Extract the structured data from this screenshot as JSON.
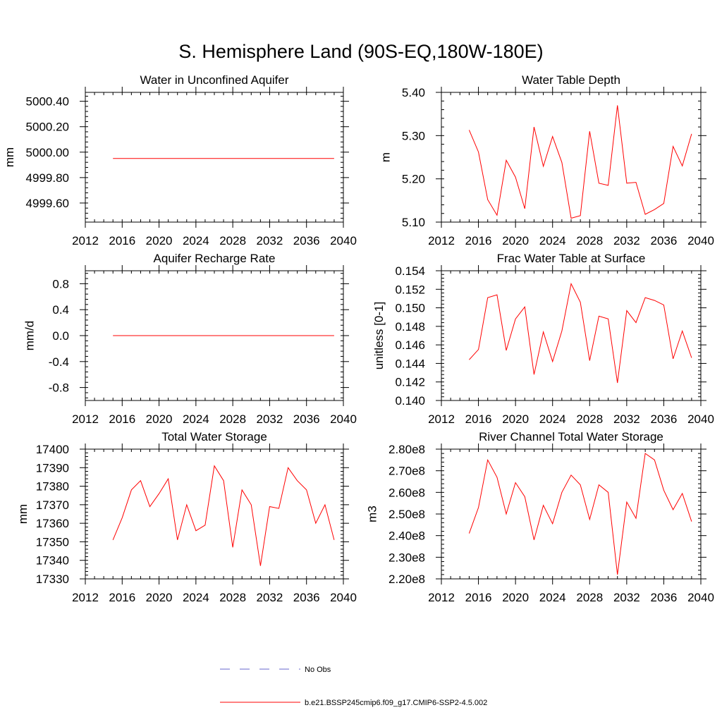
{
  "figure": {
    "title": "S. Hemisphere Land (90S-EQ,180W-180E)"
  },
  "legend": {
    "entries": [
      {
        "label": "No Obs",
        "color": "#6666cc",
        "style": "dashed"
      },
      {
        "label": "b.e21.BSSP245cmip6.f09_g17.CMIP6-SSP2-4.5.002",
        "color": "#ff0000",
        "style": "solid"
      }
    ]
  },
  "chart_data": [
    {
      "type": "line",
      "title": "Water in Unconfined Aquifer",
      "ylabel": "mm",
      "xlim": [
        2012,
        2040
      ],
      "ylim": [
        4999.45,
        5000.47
      ],
      "yticks": [
        4999.6,
        4999.8,
        5000.0,
        5000.2,
        5000.4
      ],
      "ytick_labels": [
        "4999.60",
        "4999.80",
        "5000.00",
        "5000.20",
        "5000.40"
      ],
      "xticks": [
        2012,
        2016,
        2020,
        2024,
        2028,
        2032,
        2036,
        2040
      ],
      "xtick_labels": [
        "2012",
        "2016",
        "2020",
        "2024",
        "2028",
        "2032",
        "2036",
        "2040"
      ],
      "series": [
        {
          "color": "#ff0000",
          "x": [
            2015,
            2016,
            2017,
            2018,
            2019,
            2020,
            2021,
            2022,
            2023,
            2024,
            2025,
            2026,
            2027,
            2028,
            2029,
            2030,
            2031,
            2032,
            2033,
            2034,
            2035,
            2036,
            2037,
            2038,
            2039
          ],
          "y": [
            4999.95,
            4999.95,
            4999.95,
            4999.95,
            4999.95,
            4999.95,
            4999.95,
            4999.95,
            4999.95,
            4999.95,
            4999.95,
            4999.95,
            4999.95,
            4999.95,
            4999.95,
            4999.95,
            4999.95,
            4999.95,
            4999.95,
            4999.95,
            4999.95,
            4999.95,
            4999.95,
            4999.95,
            4999.95
          ]
        }
      ]
    },
    {
      "type": "line",
      "title": "Water Table Depth",
      "ylabel": "m",
      "xlim": [
        2012,
        2040
      ],
      "ylim": [
        5.1,
        5.4
      ],
      "yticks": [
        5.1,
        5.2,
        5.3,
        5.4
      ],
      "ytick_labels": [
        "5.10",
        "5.20",
        "5.30",
        "5.40"
      ],
      "xticks": [
        2012,
        2016,
        2020,
        2024,
        2028,
        2032,
        2036,
        2040
      ],
      "xtick_labels": [
        "2012",
        "2016",
        "2020",
        "2024",
        "2028",
        "2032",
        "2036",
        "2040"
      ],
      "series": [
        {
          "color": "#ff0000",
          "x": [
            2015,
            2016,
            2017,
            2018,
            2019,
            2020,
            2021,
            2022,
            2023,
            2024,
            2025,
            2026,
            2027,
            2028,
            2029,
            2030,
            2031,
            2032,
            2033,
            2034,
            2035,
            2036,
            2037,
            2038,
            2039
          ],
          "y": [
            5.313,
            5.262,
            5.152,
            5.116,
            5.243,
            5.204,
            5.131,
            5.32,
            5.229,
            5.298,
            5.238,
            5.109,
            5.115,
            5.31,
            5.19,
            5.185,
            5.37,
            5.19,
            5.192,
            5.118,
            5.129,
            5.143,
            5.275,
            5.23,
            5.304
          ]
        }
      ]
    },
    {
      "type": "line",
      "title": "Aquifer Recharge Rate",
      "ylabel": "mm/d",
      "xlim": [
        2012,
        2040
      ],
      "ylim": [
        -1.0,
        1.0
      ],
      "yticks": [
        -0.8,
        -0.4,
        0.0,
        0.4,
        0.8
      ],
      "ytick_labels": [
        "-0.8",
        "-0.4",
        "0.0",
        "0.4",
        "0.8"
      ],
      "xticks": [
        2012,
        2016,
        2020,
        2024,
        2028,
        2032,
        2036,
        2040
      ],
      "xtick_labels": [
        "2012",
        "2016",
        "2020",
        "2024",
        "2028",
        "2032",
        "2036",
        "2040"
      ],
      "series": [
        {
          "color": "#ff0000",
          "x": [
            2015,
            2016,
            2017,
            2018,
            2019,
            2020,
            2021,
            2022,
            2023,
            2024,
            2025,
            2026,
            2027,
            2028,
            2029,
            2030,
            2031,
            2032,
            2033,
            2034,
            2035,
            2036,
            2037,
            2038,
            2039
          ],
          "y": [
            0,
            0,
            0,
            0,
            0,
            0,
            0,
            0,
            0,
            0,
            0,
            0,
            0,
            0,
            0,
            0,
            0,
            0,
            0,
            0,
            0,
            0,
            0,
            0,
            0
          ]
        }
      ]
    },
    {
      "type": "line",
      "title": "Frac Water Table at Surface",
      "ylabel": "unitless [0-1]",
      "xlim": [
        2012,
        2040
      ],
      "ylim": [
        0.14,
        0.154
      ],
      "yticks": [
        0.14,
        0.142,
        0.144,
        0.146,
        0.148,
        0.15,
        0.152,
        0.154
      ],
      "ytick_labels": [
        "0.140",
        "0.142",
        "0.144",
        "0.146",
        "0.148",
        "0.150",
        "0.152",
        "0.154"
      ],
      "xticks": [
        2012,
        2016,
        2020,
        2024,
        2028,
        2032,
        2036,
        2040
      ],
      "xtick_labels": [
        "2012",
        "2016",
        "2020",
        "2024",
        "2028",
        "2032",
        "2036",
        "2040"
      ],
      "series": [
        {
          "color": "#ff0000",
          "x": [
            2015,
            2016,
            2017,
            2018,
            2019,
            2020,
            2021,
            2022,
            2023,
            2024,
            2025,
            2026,
            2027,
            2028,
            2029,
            2030,
            2031,
            2032,
            2033,
            2034,
            2035,
            2036,
            2037,
            2038,
            2039
          ],
          "y": [
            0.1444,
            0.1455,
            0.1511,
            0.1514,
            0.1454,
            0.1488,
            0.1501,
            0.1428,
            0.1474,
            0.1442,
            0.1475,
            0.1526,
            0.1506,
            0.1443,
            0.1491,
            0.1488,
            0.1419,
            0.1497,
            0.1484,
            0.1511,
            0.1508,
            0.1503,
            0.1445,
            0.1475,
            0.1446
          ]
        }
      ]
    },
    {
      "type": "line",
      "title": "Total Water Storage",
      "ylabel": "mm",
      "xlim": [
        2012,
        2040
      ],
      "ylim": [
        17330,
        17400
      ],
      "yticks": [
        17330,
        17340,
        17350,
        17360,
        17370,
        17380,
        17390,
        17400
      ],
      "ytick_labels": [
        "17330",
        "17340",
        "17350",
        "17360",
        "17370",
        "17380",
        "17390",
        "17400"
      ],
      "xticks": [
        2012,
        2016,
        2020,
        2024,
        2028,
        2032,
        2036,
        2040
      ],
      "xtick_labels": [
        "2012",
        "2016",
        "2020",
        "2024",
        "2028",
        "2032",
        "2036",
        "2040"
      ],
      "series": [
        {
          "color": "#ff0000",
          "x": [
            2015,
            2016,
            2017,
            2018,
            2019,
            2020,
            2021,
            2022,
            2023,
            2024,
            2025,
            2026,
            2027,
            2028,
            2029,
            2030,
            2031,
            2032,
            2033,
            2034,
            2035,
            2036,
            2037,
            2038,
            2039
          ],
          "y": [
            17351,
            17363,
            17378,
            17383,
            17369,
            17376,
            17384,
            17351,
            17370,
            17356,
            17359,
            17391,
            17383,
            17347,
            17378,
            17370,
            17337,
            17369,
            17368,
            17390,
            17383,
            17378,
            17360,
            17370,
            17351
          ]
        }
      ]
    },
    {
      "type": "line",
      "title": "River Channel Total Water Storage",
      "ylabel": "m3",
      "xlim": [
        2012,
        2040
      ],
      "ylim": [
        220000000.0,
        280000000.0
      ],
      "yticks": [
        220000000.0,
        230000000.0,
        240000000.0,
        250000000.0,
        260000000.0,
        270000000.0,
        280000000.0
      ],
      "ytick_labels": [
        "2.20e8",
        "2.30e8",
        "2.40e8",
        "2.50e8",
        "2.60e8",
        "2.70e8",
        "2.80e8"
      ],
      "xticks": [
        2012,
        2016,
        2020,
        2024,
        2028,
        2032,
        2036,
        2040
      ],
      "xtick_labels": [
        "2012",
        "2016",
        "2020",
        "2024",
        "2028",
        "2032",
        "2036",
        "2040"
      ],
      "series": [
        {
          "color": "#ff0000",
          "x": [
            2015,
            2016,
            2017,
            2018,
            2019,
            2020,
            2021,
            2022,
            2023,
            2024,
            2025,
            2026,
            2027,
            2028,
            2029,
            2030,
            2031,
            2032,
            2033,
            2034,
            2035,
            2036,
            2037,
            2038,
            2039
          ],
          "y": [
            241000000.0,
            253000000.0,
            275000000.0,
            267000000.0,
            250000000.0,
            264500000.0,
            258000000.0,
            238000000.0,
            254000000.0,
            245500000.0,
            260000000.0,
            268000000.0,
            263500000.0,
            247500000.0,
            263500000.0,
            260000000.0,
            222000000.0,
            255500000.0,
            248000000.0,
            278000000.0,
            275000000.0,
            261000000.0,
            252000000.0,
            259500000.0,
            246500000.0
          ]
        }
      ]
    }
  ]
}
